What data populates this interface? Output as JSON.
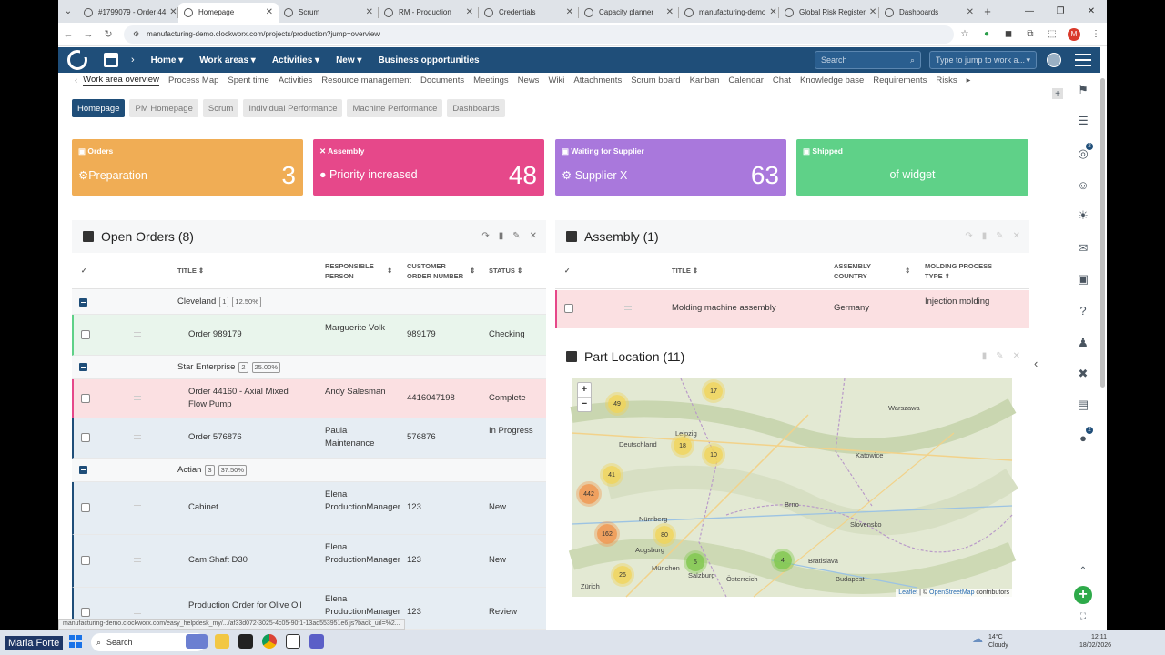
{
  "browser": {
    "tabs": [
      {
        "label": "#1799079 - Order 44"
      },
      {
        "label": "Homepage",
        "active": true
      },
      {
        "label": "Scrum"
      },
      {
        "label": "RM - Production"
      },
      {
        "label": "Credentials"
      },
      {
        "label": "Capacity planner"
      },
      {
        "label": "manufacturing-demo"
      },
      {
        "label": "Global Risk Register"
      },
      {
        "label": "Dashboards"
      }
    ],
    "url": "manufacturing-demo.clockworx.com/projects/production?jump=overview",
    "profile_letter": "M"
  },
  "header": {
    "menu": [
      "Home ▾",
      "Work areas ▾",
      "Activities ▾",
      "New ▾",
      "Business opportunities"
    ],
    "search_placeholder": "Search",
    "jump_placeholder": "Type to jump to work a..."
  },
  "module_nav": {
    "items": [
      "Work area overview",
      "Process Map",
      "Spent time",
      "Activities",
      "Resource management",
      "Documents",
      "Meetings",
      "News",
      "Wiki",
      "Attachments",
      "Scrum board",
      "Kanban",
      "Calendar",
      "Chat",
      "Knowledge base",
      "Requirements",
      "Risks"
    ]
  },
  "sub_tabs": [
    "Homepage",
    "PM Homepage",
    "Scrum",
    "Individual Performance",
    "Machine Performance",
    "Dashboards"
  ],
  "cards": [
    {
      "title": "Orders",
      "label": "Preparation",
      "value": "3",
      "color": "#f0ad55"
    },
    {
      "title": "Assembly",
      "label": "Priority increased",
      "value": "48",
      "color": "#e6488a"
    },
    {
      "title": "Waiting for Supplier",
      "label": "Supplier X",
      "value": "63",
      "color": "#a978dc"
    },
    {
      "title": "Shipped",
      "label": "of widget",
      "value": "",
      "color": "#5fd188"
    }
  ],
  "open_orders": {
    "title": "Open Orders (8)",
    "headers": {
      "title": "TITLE",
      "responsible": "RESPONSIBLE PERSON",
      "customer_order": "CUSTOMER ORDER NUMBER",
      "status": "STATUS"
    },
    "groups": [
      {
        "name": "Cleveland",
        "count": "1",
        "pct": "12.50%"
      },
      {
        "name": "Star Enterprise",
        "count": "2",
        "pct": "25.00%"
      },
      {
        "name": "Actian",
        "count": "3",
        "pct": "37.50%"
      }
    ],
    "rows": [
      {
        "title": "Order 989179",
        "person": "Marguerite Volk",
        "number": "989179",
        "status": "Checking"
      },
      {
        "title": "Order 44160 - Axial Mixed Flow Pump",
        "person": "Andy Salesman",
        "number": "4416047198",
        "status": "Complete"
      },
      {
        "title": "Order 576876",
        "person": "Paula Maintenance",
        "number": "576876",
        "status": "In Progress"
      },
      {
        "title": "Cabinet",
        "person": "Elena ProductionManager",
        "number": "123",
        "status": "New"
      },
      {
        "title": "Cam Shaft D30",
        "person": "Elena ProductionManager",
        "number": "123",
        "status": "New"
      },
      {
        "title": "Production Order for Olive Oil",
        "person": "Elena ProductionManager",
        "number": "123",
        "status": "Review"
      }
    ]
  },
  "assembly": {
    "title": "Assembly (1)",
    "headers": {
      "title": "TITLE",
      "country": "ASSEMBLY COUNTRY",
      "molding": "MOLDING PROCESS TYPE"
    },
    "rows": [
      {
        "title": "Molding machine assembly",
        "country": "Germany",
        "molding": "Injection molding"
      }
    ]
  },
  "part_location": {
    "title": "Part Location (11)",
    "clusters": [
      "49",
      "17",
      "18",
      "10",
      "41",
      "442",
      "162",
      "80",
      "26",
      "5",
      "4"
    ],
    "cities": [
      "Warszawa",
      "Deutschland",
      "Leipzig",
      "Katowice",
      "Nürnberg",
      "Brno",
      "Augsburg",
      "München",
      "Slovensko",
      "Bratislava",
      "Budapest",
      "Österreich",
      "Zürich",
      "Salzburg"
    ],
    "attribution": {
      "leaflet": "Leaflet",
      "sep": "| ©",
      "osm": "OpenStreetMap",
      "tail": "contributors"
    }
  },
  "status_url": "manufacturing-demo.clockworx.com/easy_helpdesk_my/.../af33d072-3025-4c05-90f1-13ad553951e6.js?back_url=%2...",
  "taskbar": {
    "user": "Maria Forte",
    "search": "Search",
    "temp": "14°C",
    "weather": "Cloudy",
    "time": "12:11",
    "date": "18/02/2026"
  }
}
